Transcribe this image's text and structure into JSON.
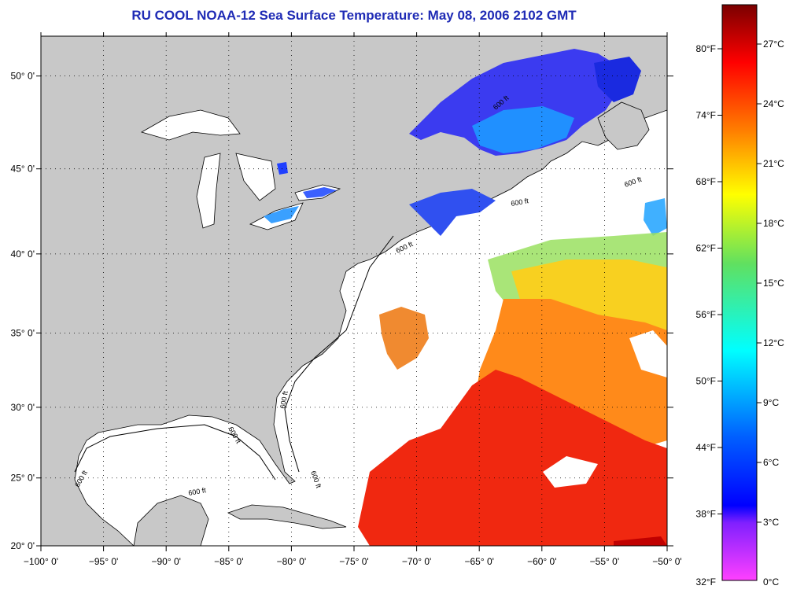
{
  "title": "RU COOL  NOAA-12  Sea Surface Temperature:  May 08, 2006 2102 GMT",
  "map": {
    "lon_range": [
      -100,
      -50
    ],
    "lat_range": [
      20,
      52
    ],
    "lon_ticks": [
      "−100° 0'",
      "−95° 0'",
      "−90° 0'",
      "−85° 0'",
      "−80° 0'",
      "−75° 0'",
      "−70° 0'",
      "−65° 0'",
      "−60° 0'",
      "−55° 0'",
      "−50° 0'"
    ],
    "lat_ticks": [
      "20° 0'",
      "25° 0'",
      "30° 0'",
      "35° 0'",
      "40° 0'",
      "45° 0'",
      "50° 0'"
    ],
    "contour_label": "600 ft",
    "colors": {
      "land": "#c8c8c8",
      "ocean_nodata": "#ffffff",
      "grid": "#000000"
    }
  },
  "colorbar": {
    "fahrenheit": [
      "80°F",
      "74°F",
      "68°F",
      "62°F",
      "56°F",
      "50°F",
      "44°F",
      "38°F",
      "32°F"
    ],
    "celsius": [
      "27°C",
      "24°C",
      "21°C",
      "18°C",
      "15°C",
      "12°C",
      "9°C",
      "6°C",
      "3°C",
      "0°C"
    ],
    "colors": [
      "#7a0000",
      "#ff0000",
      "#ff8000",
      "#ffff00",
      "#60e060",
      "#00ffff",
      "#0080ff",
      "#0000ff",
      "#8020ff",
      "#ff40ff"
    ]
  }
}
